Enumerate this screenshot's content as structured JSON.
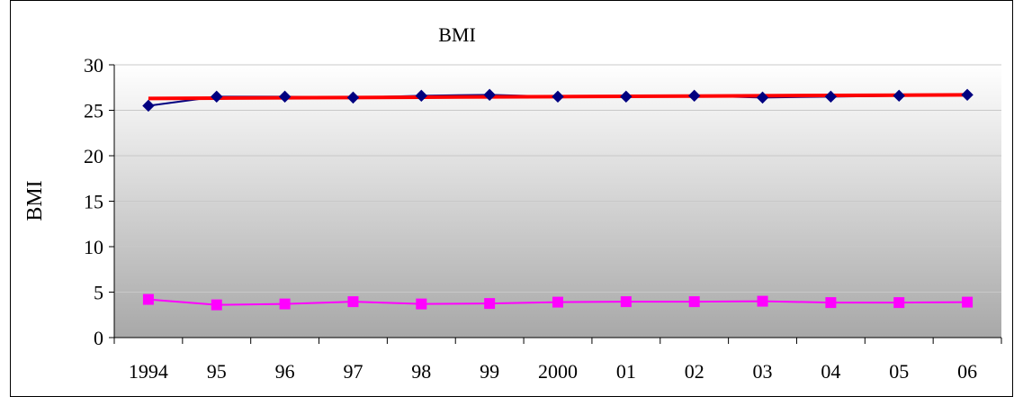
{
  "chart_data": {
    "type": "line",
    "title": "BMI",
    "ylabel": "BMI",
    "xlabel": "",
    "categories": [
      "1994",
      "95",
      "96",
      "97",
      "98",
      "99",
      "2000",
      "01",
      "02",
      "03",
      "04",
      "05",
      "06"
    ],
    "ylim": [
      0,
      30
    ],
    "yticks": [
      "0",
      "5",
      "10",
      "15",
      "20",
      "25",
      "30"
    ],
    "grid": true,
    "legend": "none",
    "series": [
      {
        "values": [
          25.5,
          26.5,
          26.5,
          26.4,
          26.6,
          26.7,
          26.5,
          26.5,
          26.6,
          26.4,
          26.5,
          26.6,
          26.7
        ],
        "color": "#000080",
        "marker": "diamond"
      },
      {
        "values": [
          26.3,
          26.34,
          26.37,
          26.4,
          26.44,
          26.47,
          26.5,
          26.53,
          26.56,
          26.6,
          26.63,
          26.66,
          26.7
        ],
        "color": "#ff0000",
        "marker": "none"
      },
      {
        "values": [
          4.2,
          3.6,
          3.7,
          3.95,
          3.7,
          3.75,
          3.9,
          3.95,
          3.95,
          4.0,
          3.85,
          3.85,
          3.9
        ],
        "color": "#ff00ff",
        "marker": "square"
      }
    ]
  }
}
